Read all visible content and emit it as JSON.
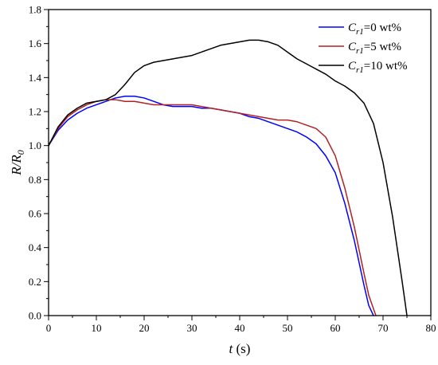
{
  "chart_data": {
    "type": "line",
    "xlabel": {
      "var": "t",
      "unit": " (s)"
    },
    "ylabel": {
      "main": "R/R",
      "sub": "0"
    },
    "xlim": [
      0,
      80
    ],
    "ylim": [
      0,
      1.8
    ],
    "x_ticks": [
      0,
      10,
      20,
      30,
      40,
      50,
      60,
      70,
      80
    ],
    "y_ticks": [
      0.0,
      0.2,
      0.4,
      0.6,
      0.8,
      1.0,
      1.2,
      1.4,
      1.6,
      1.8
    ],
    "grid": false,
    "legend_position": "top-right",
    "series": [
      {
        "name": "Cr1=0 wt%",
        "legend": {
          "C": "C",
          "sub": "r1",
          "rest": "=0 wt%"
        },
        "color": "#0000ff",
        "x": [
          0,
          2,
          4,
          6,
          8,
          10,
          12,
          14,
          16,
          18,
          20,
          22,
          24,
          26,
          28,
          30,
          32,
          34,
          36,
          38,
          40,
          42,
          44,
          46,
          48,
          50,
          52,
          54,
          56,
          58,
          60,
          62,
          64,
          66,
          67,
          68
        ],
        "y": [
          1.0,
          1.09,
          1.15,
          1.19,
          1.22,
          1.24,
          1.26,
          1.28,
          1.29,
          1.29,
          1.28,
          1.26,
          1.24,
          1.23,
          1.23,
          1.23,
          1.22,
          1.22,
          1.21,
          1.2,
          1.19,
          1.17,
          1.16,
          1.14,
          1.12,
          1.1,
          1.08,
          1.05,
          1.01,
          0.94,
          0.84,
          0.66,
          0.44,
          0.18,
          0.06,
          0.0
        ]
      },
      {
        "name": "Cr1=5 wt%",
        "legend": {
          "C": "C",
          "sub": "r1",
          "rest": "=5 wt%"
        },
        "color": "#b22222",
        "x": [
          0,
          2,
          4,
          6,
          8,
          10,
          12,
          14,
          16,
          18,
          20,
          22,
          24,
          26,
          28,
          30,
          32,
          34,
          36,
          38,
          40,
          42,
          44,
          46,
          48,
          50,
          52,
          54,
          56,
          58,
          60,
          62,
          64,
          66,
          67,
          68.5
        ],
        "y": [
          1.0,
          1.1,
          1.17,
          1.21,
          1.24,
          1.26,
          1.27,
          1.27,
          1.26,
          1.26,
          1.25,
          1.24,
          1.24,
          1.24,
          1.24,
          1.24,
          1.23,
          1.22,
          1.21,
          1.2,
          1.19,
          1.18,
          1.17,
          1.16,
          1.15,
          1.15,
          1.14,
          1.12,
          1.1,
          1.05,
          0.94,
          0.75,
          0.52,
          0.25,
          0.12,
          0.0
        ]
      },
      {
        "name": "Cr1=10 wt%",
        "legend": {
          "C": "C",
          "sub": "r1",
          "rest": "=10 wt%"
        },
        "color": "#000000",
        "x": [
          0,
          2,
          4,
          6,
          8,
          10,
          12,
          14,
          16,
          18,
          20,
          22,
          24,
          26,
          28,
          30,
          32,
          34,
          36,
          38,
          40,
          42,
          44,
          46,
          48,
          50,
          52,
          54,
          56,
          58,
          60,
          62,
          64,
          66,
          68,
          70,
          72,
          74,
          75
        ],
        "y": [
          1.0,
          1.11,
          1.18,
          1.22,
          1.25,
          1.26,
          1.27,
          1.3,
          1.36,
          1.43,
          1.47,
          1.49,
          1.5,
          1.51,
          1.52,
          1.53,
          1.55,
          1.57,
          1.59,
          1.6,
          1.61,
          1.62,
          1.62,
          1.61,
          1.59,
          1.55,
          1.51,
          1.48,
          1.45,
          1.42,
          1.38,
          1.35,
          1.31,
          1.25,
          1.13,
          0.9,
          0.58,
          0.2,
          0.0
        ]
      }
    ]
  }
}
